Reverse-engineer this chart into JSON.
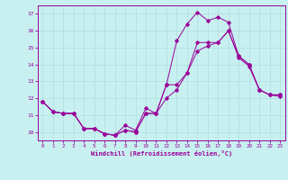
{
  "xlabel": "Windchill (Refroidissement éolien,°C)",
  "bg_color": "#c8f0f0",
  "line_color": "#990099",
  "grid_color": "#b0dede",
  "xlim": [
    -0.5,
    23.5
  ],
  "ylim": [
    9.5,
    17.5
  ],
  "xticks": [
    0,
    1,
    2,
    3,
    4,
    5,
    6,
    7,
    8,
    9,
    10,
    11,
    12,
    13,
    14,
    15,
    16,
    17,
    18,
    19,
    20,
    21,
    22,
    23
  ],
  "yticks": [
    10,
    11,
    12,
    13,
    14,
    15,
    16,
    17
  ],
  "line1_x": [
    0,
    1,
    2,
    3,
    4,
    5,
    6,
    7,
    8,
    9,
    10,
    11,
    12,
    13,
    14,
    15,
    16,
    17,
    18,
    19,
    20,
    21,
    22,
    23
  ],
  "line1_y": [
    11.8,
    11.2,
    11.1,
    11.1,
    10.2,
    10.2,
    9.9,
    9.8,
    10.4,
    10.1,
    11.4,
    11.1,
    12.8,
    12.8,
    13.5,
    15.3,
    15.3,
    15.3,
    16.0,
    14.4,
    13.9,
    12.5,
    12.2,
    12.1
  ],
  "line2_x": [
    0,
    1,
    2,
    3,
    4,
    5,
    6,
    7,
    8,
    9,
    10,
    11,
    12,
    13,
    14,
    15,
    16,
    17,
    18,
    19,
    20,
    21,
    22,
    23
  ],
  "line2_y": [
    11.8,
    11.2,
    11.1,
    11.1,
    10.2,
    10.2,
    9.9,
    9.8,
    10.1,
    10.0,
    11.1,
    11.1,
    12.8,
    15.4,
    16.4,
    17.1,
    16.6,
    16.8,
    16.5,
    14.5,
    14.0,
    12.5,
    12.2,
    12.2
  ],
  "line3_x": [
    0,
    1,
    2,
    3,
    4,
    5,
    6,
    7,
    8,
    9,
    10,
    11,
    12,
    13,
    14,
    15,
    16,
    17,
    18,
    19,
    20,
    21,
    22,
    23
  ],
  "line3_y": [
    11.8,
    11.2,
    11.1,
    11.1,
    10.2,
    10.2,
    9.9,
    9.8,
    10.1,
    10.0,
    11.1,
    11.1,
    12.0,
    12.5,
    13.5,
    14.8,
    15.1,
    15.3,
    16.0,
    14.5,
    14.0,
    12.5,
    12.2,
    12.2
  ]
}
